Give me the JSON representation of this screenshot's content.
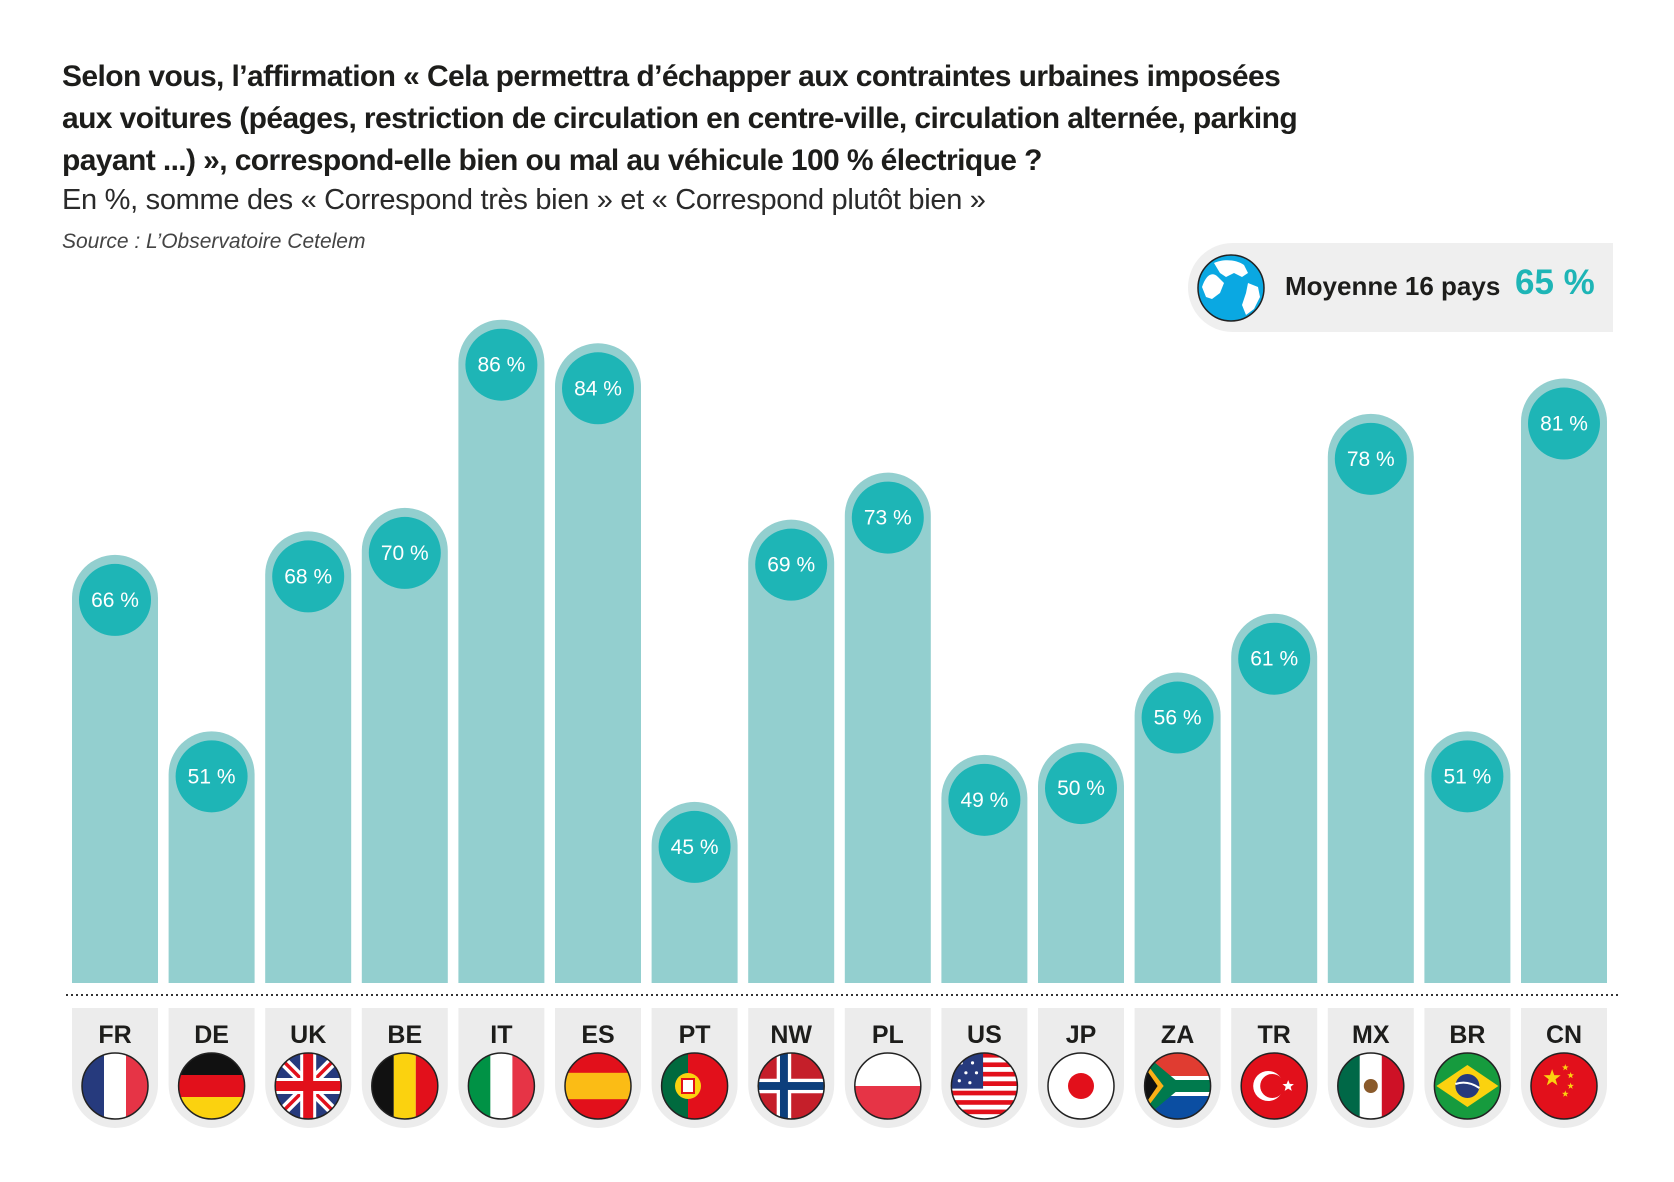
{
  "header": {
    "title_lines": [
      "Selon vous, l’affirmation « Cela permettra d’échapper aux contraintes urbaines imposées",
      "aux voitures (péages, restriction de circulation en centre-ville, circulation alternée, parking",
      "payant ...) », correspond-elle bien ou mal au véhicule 100 % électrique ?"
    ],
    "subtitle": "En %, somme des « Correspond très bien » et « Correspond plutôt bien »",
    "source": "Source : L’Observatoire Cetelem"
  },
  "average": {
    "icon": "globe-icon",
    "label": "Moyenne 16 pays",
    "value": "65 %"
  },
  "colors": {
    "bar": "#93cfcf",
    "bubble": "#1eb5b6",
    "bubble_ring": "#93cfcf",
    "tab": "#ececec",
    "accent": "#1eb5b6"
  },
  "chart_data": {
    "type": "bar",
    "title": "Selon vous, l’affirmation « Cela permettra d’échapper aux contraintes urbaines imposées aux voitures (péages, restriction de circulation en centre-ville, circulation alternée, parking payant ...) », correspond-elle bien ou mal au véhicule 100 % électrique ?",
    "subtitle": "En %, somme des « Correspond très bien » et « Correspond plutôt bien »",
    "xlabel": "",
    "ylabel": "%",
    "unit_suffix": " %",
    "grid": false,
    "legend": "none",
    "average": 65,
    "categories": [
      "FR",
      "DE",
      "UK",
      "BE",
      "IT",
      "ES",
      "PT",
      "NW",
      "PL",
      "US",
      "JP",
      "ZA",
      "TR",
      "MX",
      "BR",
      "CN"
    ],
    "values": [
      66,
      51,
      68,
      70,
      86,
      84,
      45,
      69,
      73,
      49,
      50,
      56,
      61,
      78,
      51,
      81
    ],
    "flags": [
      "france",
      "germany",
      "uk",
      "belgium",
      "italy",
      "spain",
      "portugal",
      "norway",
      "poland",
      "usa",
      "japan",
      "south-africa",
      "turkey",
      "mexico",
      "brazil",
      "china"
    ],
    "value_labels": [
      "66 %",
      "51 %",
      "68 %",
      "70 %",
      "86 %",
      "84 %",
      "45 %",
      "69 %",
      "73 %",
      "49 %",
      "50 %",
      "56 %",
      "61 %",
      "78 %",
      "51 %",
      "81 %"
    ]
  }
}
